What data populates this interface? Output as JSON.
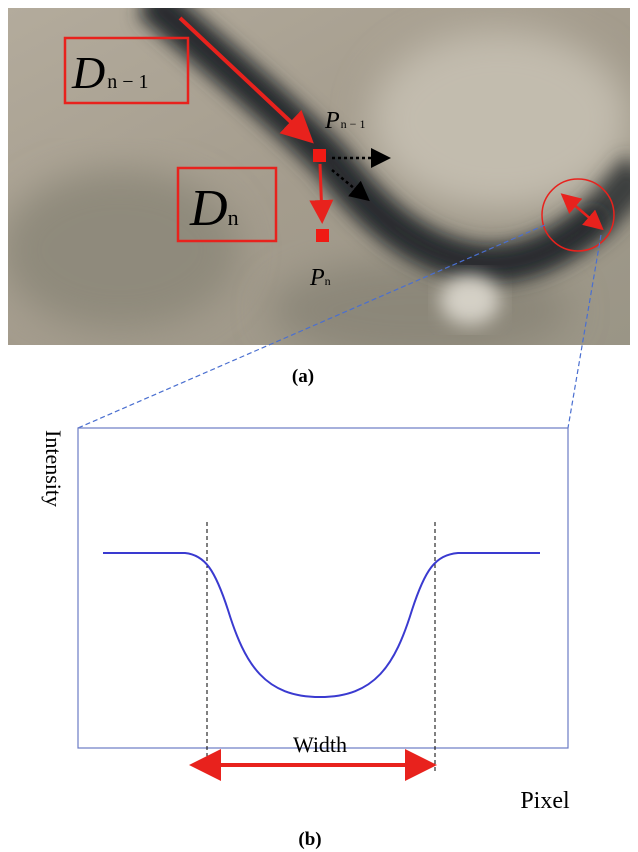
{
  "panel_a": {
    "labels": [
      {
        "main": "D",
        "sub": "n − 1"
      },
      {
        "main": "D",
        "sub": "n"
      },
      {
        "main": "P",
        "sub": "n − 1"
      },
      {
        "main": "P",
        "sub": "n"
      }
    ],
    "caption": "(a)"
  },
  "panel_b": {
    "y_label": "Intensity",
    "x_label": "Pixel",
    "width_label": "Width",
    "caption": "(b)"
  }
}
